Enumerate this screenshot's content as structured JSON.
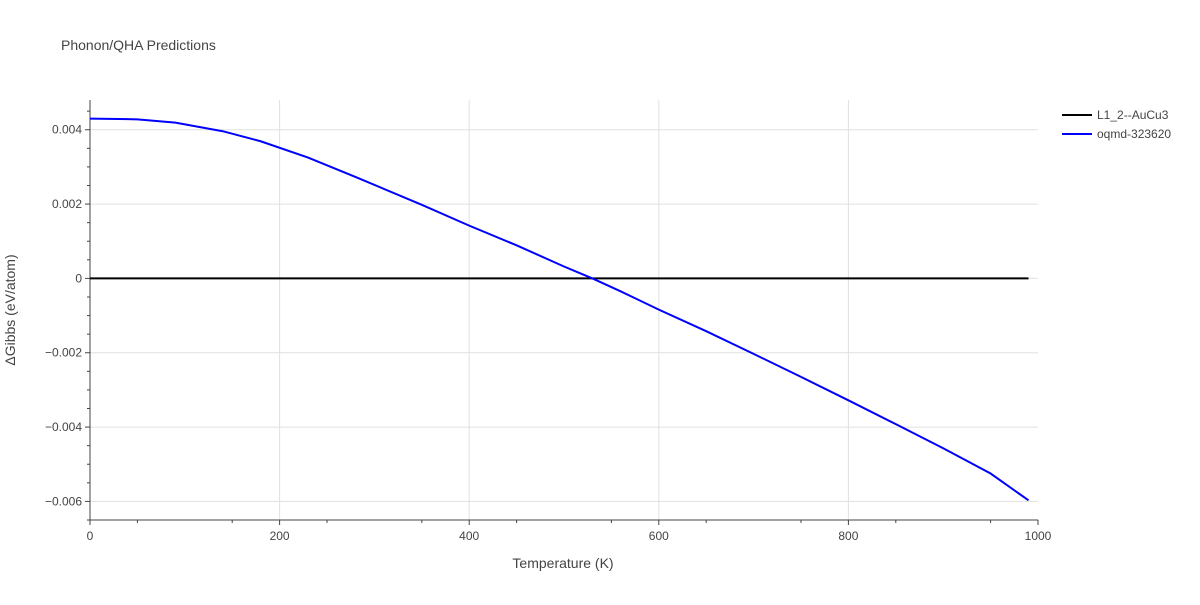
{
  "chart_data": {
    "type": "line",
    "title": "Phonon/QHA Predictions",
    "xlabel": "Temperature (K)",
    "ylabel": "ΔGibbs (eV/atom)",
    "xlim": [
      0,
      1000
    ],
    "ylim": [
      -0.0065,
      0.0048
    ],
    "x_ticks": [
      0,
      200,
      400,
      600,
      800,
      1000
    ],
    "x_tick_labels": [
      "0",
      "200",
      "400",
      "600",
      "800",
      "1000"
    ],
    "y_ticks": [
      0.004,
      0.002,
      0,
      -0.002,
      -0.004,
      -0.006
    ],
    "y_tick_labels": [
      "0.004",
      "0.002",
      "0",
      "−0.002",
      "−0.004",
      "−0.006"
    ],
    "grid": true,
    "legend_position": "top-right",
    "series": [
      {
        "name": "L1_2--AuCu3",
        "color": "#000000",
        "x": [
          0,
          990
        ],
        "y": [
          0,
          0
        ]
      },
      {
        "name": "oqmd-323620",
        "color": "#0000ff",
        "x": [
          0,
          50,
          90,
          140,
          180,
          230,
          280,
          350,
          400,
          450,
          500,
          530,
          560,
          600,
          650,
          700,
          750,
          800,
          850,
          900,
          950,
          990
        ],
        "y": [
          0.0043,
          0.00428,
          0.00419,
          0.00396,
          0.00369,
          0.00325,
          0.00273,
          0.00198,
          0.00142,
          0.00089,
          0.00032,
          0.0,
          -0.00035,
          -0.00084,
          -0.00142,
          -0.00203,
          -0.00265,
          -0.00328,
          -0.00392,
          -0.00457,
          -0.00525,
          -0.00597
        ]
      }
    ]
  }
}
